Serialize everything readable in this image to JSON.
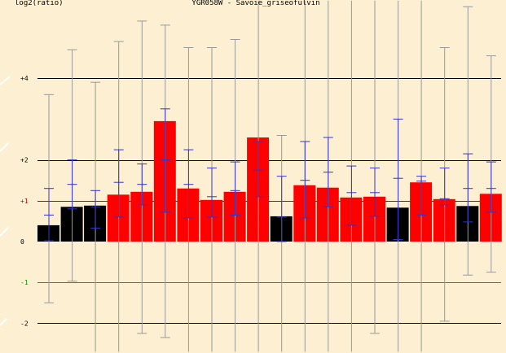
{
  "chart_data": {
    "type": "bar",
    "title": "YGR058W - Savoie_griseofulvin",
    "ylabel": "log2(ratio)",
    "xlabel": "",
    "ylim": [
      -2.7,
      5.9
    ],
    "y_tick_labels": [
      {
        "value": 4,
        "label": "+4"
      },
      {
        "value": 2,
        "label": "+2"
      },
      {
        "value": 1,
        "label": "+1"
      },
      {
        "value": 0,
        "label": "0"
      },
      {
        "value": -1,
        "label": "-1"
      },
      {
        "value": -2,
        "label": "-2"
      }
    ],
    "colors": {
      "background": "#fdf0d2",
      "bar_black": "#000000",
      "bar_red": "#ff0000",
      "gridline": "#000000",
      "line_plus1": "#cc0000",
      "line_minus1": "#00b000",
      "whisker_outer": "#999999",
      "whisker_inner": "#3333cc"
    },
    "bars": [
      {
        "value": 0.4,
        "color": "black",
        "outer": [
          -1.5,
          3.6
        ],
        "inner": [
          0.02,
          1.3
        ],
        "mid": 0.65
      },
      {
        "value": 0.85,
        "color": "black",
        "outer": [
          -0.97,
          4.7
        ],
        "inner": [
          0.8,
          2.0
        ],
        "mid": 1.4
      },
      {
        "value": 0.88,
        "color": "black",
        "outer": [
          -2.7,
          3.9
        ],
        "inner": [
          0.33,
          1.25
        ],
        "mid": 0.85
      },
      {
        "value": 1.15,
        "color": "red",
        "outer": [
          -2.7,
          4.9
        ],
        "inner": [
          0.6,
          2.25
        ],
        "mid": 1.45
      },
      {
        "value": 1.22,
        "color": "red",
        "outer": [
          -2.25,
          5.4
        ],
        "inner": [
          0.9,
          1.9
        ],
        "mid": 1.4
      },
      {
        "value": 2.95,
        "color": "red",
        "outer": [
          -2.35,
          5.3
        ],
        "inner": [
          0.72,
          3.25
        ],
        "mid": 2.0
      },
      {
        "value": 1.3,
        "color": "red",
        "outer": [
          -2.7,
          4.75
        ],
        "inner": [
          0.58,
          2.25
        ],
        "mid": 1.4
      },
      {
        "value": 1.02,
        "color": "red",
        "outer": [
          -2.7,
          4.75
        ],
        "inner": [
          0.6,
          1.8
        ],
        "mid": 1.1
      },
      {
        "value": 1.22,
        "color": "red",
        "outer": [
          -2.7,
          4.95
        ],
        "inner": [
          0.65,
          1.95
        ],
        "mid": 1.25
      },
      {
        "value": 2.55,
        "color": "red",
        "outer": [
          -2.7,
          5.9
        ],
        "inner": [
          1.1,
          2.45
        ],
        "mid": 1.75
      },
      {
        "value": 0.62,
        "color": "black",
        "outer": [
          -2.7,
          2.6
        ],
        "inner": [
          0.0,
          1.6
        ],
        "mid": 0.6
      },
      {
        "value": 1.38,
        "color": "red",
        "outer": [
          -2.7,
          5.9
        ],
        "inner": [
          0.58,
          2.45
        ],
        "mid": 1.5
      },
      {
        "value": 1.32,
        "color": "red",
        "outer": [
          -2.7,
          5.9
        ],
        "inner": [
          0.85,
          2.55
        ],
        "mid": 1.7
      },
      {
        "value": 1.08,
        "color": "red",
        "outer": [
          -2.7,
          5.9
        ],
        "inner": [
          0.4,
          1.85
        ],
        "mid": 1.2
      },
      {
        "value": 1.1,
        "color": "red",
        "outer": [
          -2.25,
          5.9
        ],
        "inner": [
          0.62,
          1.8
        ],
        "mid": 1.2
      },
      {
        "value": 0.83,
        "color": "black",
        "outer": [
          -2.7,
          5.9
        ],
        "inner": [
          0.05,
          3.0
        ],
        "mid": 1.55
      },
      {
        "value": 1.45,
        "color": "red",
        "outer": [
          -2.7,
          5.9
        ],
        "inner": [
          0.65,
          1.6
        ],
        "mid": 1.48
      },
      {
        "value": 1.04,
        "color": "red",
        "outer": [
          -1.95,
          4.75
        ],
        "inner": [
          0.9,
          1.8
        ],
        "mid": 1.05
      },
      {
        "value": 0.87,
        "color": "black",
        "outer": [
          -0.82,
          5.75
        ],
        "inner": [
          0.48,
          2.15
        ],
        "mid": 1.3
      },
      {
        "value": 1.17,
        "color": "red",
        "outer": [
          -0.75,
          4.55
        ],
        "inner": [
          0.72,
          1.95
        ],
        "mid": 1.3
      }
    ]
  }
}
